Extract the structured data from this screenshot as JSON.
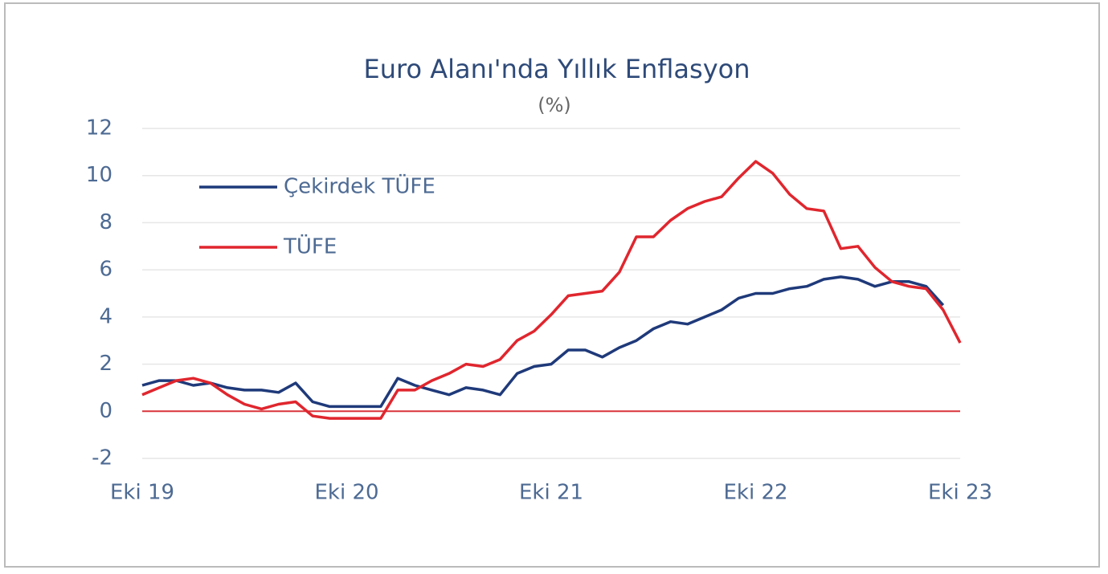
{
  "chart_data": {
    "type": "line",
    "title": "Euro Alanı'nda Yıllık Enflasyon",
    "subtitle": "(%)",
    "categories": [
      "Eki 19",
      null,
      null,
      null,
      null,
      null,
      null,
      null,
      null,
      null,
      null,
      null,
      "Eki 20",
      null,
      null,
      null,
      null,
      null,
      null,
      null,
      null,
      null,
      null,
      null,
      "Eki 21",
      null,
      null,
      null,
      null,
      null,
      null,
      null,
      null,
      null,
      null,
      null,
      "Eki 22",
      null,
      null,
      null,
      null,
      null,
      null,
      null,
      null,
      null,
      null,
      null,
      "Eki 23"
    ],
    "series": [
      {
        "name": "Çekirdek TÜFE",
        "color": "#1f3a7a",
        "values": [
          1.1,
          1.3,
          1.3,
          1.1,
          1.2,
          1.0,
          0.9,
          0.9,
          0.8,
          1.2,
          0.4,
          0.2,
          0.2,
          0.2,
          0.2,
          1.4,
          1.1,
          0.9,
          0.7,
          1.0,
          0.9,
          0.7,
          1.6,
          1.9,
          2.0,
          2.6,
          2.6,
          2.3,
          2.7,
          3.0,
          3.5,
          3.8,
          3.7,
          4.0,
          4.3,
          4.8,
          5.0,
          5.0,
          5.2,
          5.3,
          5.6,
          5.7,
          5.6,
          5.3,
          5.5,
          5.5,
          5.3,
          4.5,
          null
        ]
      },
      {
        "name": "TÜFE",
        "color": "#e0262e",
        "values": [
          0.7,
          1.0,
          1.3,
          1.4,
          1.2,
          0.7,
          0.3,
          0.1,
          0.3,
          0.4,
          -0.2,
          -0.3,
          -0.3,
          -0.3,
          -0.3,
          0.9,
          0.9,
          1.3,
          1.6,
          2.0,
          1.9,
          2.2,
          3.0,
          3.4,
          4.1,
          4.9,
          5.0,
          5.1,
          5.9,
          7.4,
          7.4,
          8.1,
          8.6,
          8.9,
          9.1,
          9.9,
          10.6,
          10.1,
          9.2,
          8.6,
          8.5,
          6.9,
          7.0,
          6.1,
          5.5,
          5.3,
          5.2,
          4.3,
          2.9
        ]
      }
    ],
    "ylim": [
      -2,
      12
    ],
    "yticks": [
      -2,
      0,
      2,
      4,
      6,
      8,
      10,
      12
    ],
    "grid": true,
    "zero_line_color": "#d9343a",
    "legend": "upper left"
  }
}
